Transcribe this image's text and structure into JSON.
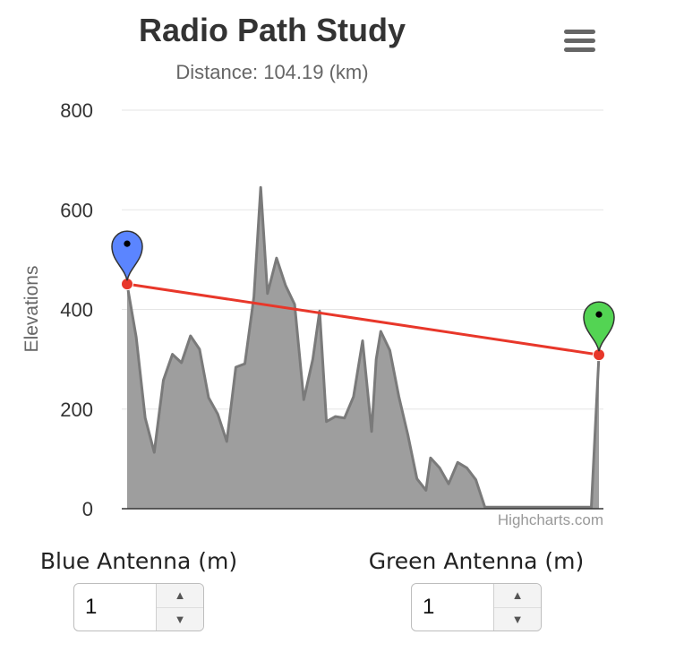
{
  "chart_data": {
    "type": "area",
    "title": "Radio Path Study",
    "subtitle": "Distance: 104.19 (km)",
    "ylabel": "Elevations",
    "xlabel": "",
    "ylim": [
      0,
      800
    ],
    "yticks": [
      "0",
      "200",
      "400",
      "600",
      "800"
    ],
    "grid": true,
    "legend": "none",
    "credits": "Highcharts.com",
    "x_range": [
      0,
      104.19
    ],
    "terrain": {
      "x": [
        0.0,
        2.0,
        4.0,
        6.0,
        8.0,
        10.0,
        12.0,
        14.0,
        16.0,
        18.0,
        20.0,
        22.0,
        24.0,
        26.0,
        28.0,
        29.5,
        31.0,
        33.0,
        35.0,
        37.0,
        39.0,
        41.0,
        42.5,
        44.0,
        46.0,
        48.0,
        50.0,
        52.0,
        54.0,
        55.0,
        56.0,
        58.0,
        60.0,
        62.0,
        64.0,
        66.0,
        67.0,
        69.0,
        71.0,
        73.0,
        75.0,
        77.0,
        79.0,
        81.0,
        83.0,
        85.0,
        87.0,
        89.0,
        91.0,
        92.0,
        93.0,
        95.0,
        97.0,
        99.0,
        101.0,
        102.5,
        104.19
      ],
      "elevation": [
        450,
        345,
        182,
        113,
        258,
        310,
        293,
        347,
        320,
        223,
        190,
        135,
        284,
        291,
        425,
        645,
        432,
        503,
        448,
        410,
        219,
        300,
        397,
        175,
        185,
        182,
        225,
        337,
        155,
        300,
        356,
        318,
        225,
        148,
        60,
        37,
        102,
        82,
        50,
        93,
        82,
        58,
        3,
        3,
        3,
        3,
        3,
        3,
        3,
        3,
        3,
        3,
        3,
        3,
        3,
        3,
        308
      ],
      "color": "#9e9e9e",
      "line_color": "#7a7a7a"
    },
    "line_of_sight": {
      "x": [
        0.0,
        104.19
      ],
      "elevation": [
        451,
        309
      ],
      "color": "#e8372a"
    },
    "markers": [
      {
        "name": "Blue",
        "x": 0.0,
        "elevation": 451,
        "color": "#5b85ff",
        "icon": "map-pin-icon"
      },
      {
        "name": "Green",
        "x": 104.19,
        "elevation": 309,
        "color": "#53d453",
        "icon": "map-pin-icon"
      }
    ]
  },
  "controls": {
    "blue_antenna": {
      "label": "Blue Antenna (m)",
      "value": "1",
      "up_icon": "triangle-up",
      "down_icon": "triangle-down"
    },
    "green_antenna": {
      "label": "Green Antenna (m)",
      "value": "1",
      "up_icon": "triangle-up",
      "down_icon": "triangle-down"
    }
  },
  "menu": {
    "icon": "hamburger-menu-icon"
  }
}
